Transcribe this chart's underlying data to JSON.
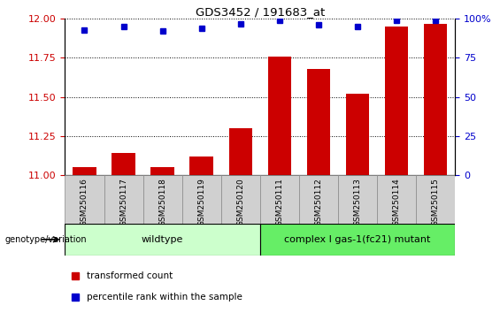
{
  "title": "GDS3452 / 191683_at",
  "samples": [
    "GSM250116",
    "GSM250117",
    "GSM250118",
    "GSM250119",
    "GSM250120",
    "GSM250111",
    "GSM250112",
    "GSM250113",
    "GSM250114",
    "GSM250115"
  ],
  "transformed_count": [
    11.05,
    11.14,
    11.05,
    11.12,
    11.3,
    11.76,
    11.68,
    11.52,
    11.95,
    11.97
  ],
  "percentile_rank": [
    93,
    95,
    92,
    94,
    97,
    99,
    96,
    95,
    99,
    99
  ],
  "ylim_left": [
    11.0,
    12.0
  ],
  "ylim_right": [
    0,
    100
  ],
  "yticks_left": [
    11.0,
    11.25,
    11.5,
    11.75,
    12.0
  ],
  "yticks_right": [
    0,
    25,
    50,
    75,
    100
  ],
  "bar_color": "#cc0000",
  "dot_color": "#0000cc",
  "wildtype_color": "#ccffcc",
  "mutant_color": "#66ee66",
  "wildtype_label": "wildtype",
  "mutant_label": "complex I gas-1(fc21) mutant",
  "wildtype_count": 5,
  "mutant_count": 5,
  "legend_bar": "transformed count",
  "legend_dot": "percentile rank within the sample",
  "genotype_label": "genotype/variation"
}
